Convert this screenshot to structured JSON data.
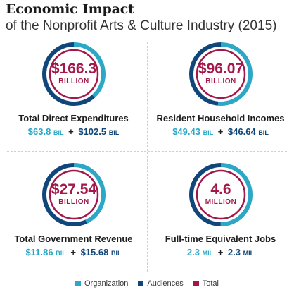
{
  "title": "Economic Impact",
  "subtitle": "of the Nonprofit Arts & Culture Industry (2015)",
  "colors": {
    "organization": "#2ca8c6",
    "audiences": "#11467a",
    "total": "#a3174a"
  },
  "chart_data": {
    "type": "pie",
    "title": "Economic Impact",
    "subtitle": "of the Nonprofit Arts & Culture Industry (2015)",
    "legend": [
      "Organization",
      "Audiences",
      "Total"
    ],
    "legend_position": "bottom",
    "panels": [
      {
        "label": "Total Direct Expenditures",
        "total": 166.3,
        "total_text": "$166.3",
        "unit": "BILLION",
        "organization": 63.8,
        "organization_text": "$63.8",
        "audiences": 102.5,
        "audiences_text": "$102.5",
        "sub_unit": "BIL"
      },
      {
        "label": "Resident Household Incomes",
        "total": 96.07,
        "total_text": "$96.07",
        "unit": "BILLION",
        "organization": 49.43,
        "organization_text": "$49.43",
        "audiences": 46.64,
        "audiences_text": "$46.64",
        "sub_unit": "BIL"
      },
      {
        "label": "Total Government Revenue",
        "total": 27.54,
        "total_text": "$27.54",
        "unit": "BILLION",
        "organization": 11.86,
        "organization_text": "$11.86",
        "audiences": 15.68,
        "audiences_text": "$15.68",
        "sub_unit": "BIL"
      },
      {
        "label": "Full-time Equivalent Jobs",
        "total": 4.6,
        "total_text": "4.6",
        "unit": "MILLION",
        "organization": 2.3,
        "organization_text": "2.3",
        "audiences": 2.3,
        "audiences_text": "2.3",
        "sub_unit": "MIL"
      }
    ]
  }
}
